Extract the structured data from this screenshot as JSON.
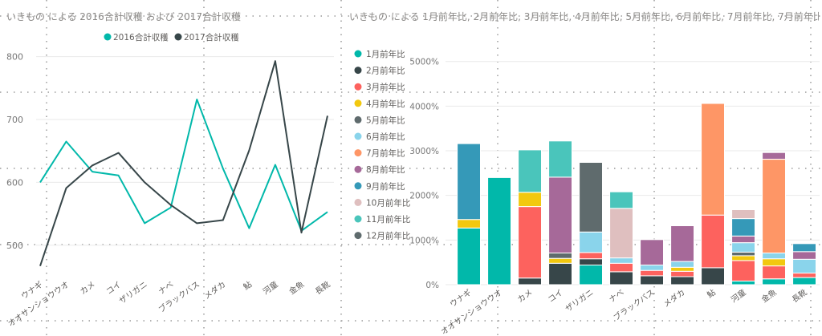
{
  "left_chart": {
    "title": "いきもの による 2016合計収穫 および 2017合計収穫",
    "chart_data": {
      "type": "line",
      "categories": [
        "ウナギ",
        "オオサンショウウオ",
        "カメ",
        "コイ",
        "ザリガニ",
        "ナベ",
        "ブラックバス",
        "メダカ",
        "鮎",
        "河童",
        "金魚",
        "長靴"
      ],
      "series": [
        {
          "name": "2016合計収穫",
          "color": "#01b8aa",
          "values": [
            600,
            665,
            617,
            611,
            535,
            560,
            732,
            622,
            527,
            628,
            523,
            553
          ]
        },
        {
          "name": "2017合計収穫",
          "color": "#374649",
          "values": [
            467,
            591,
            627,
            647,
            600,
            564,
            535,
            540,
            651,
            793,
            520,
            706
          ]
        }
      ],
      "ylim": [
        450,
        820
      ],
      "yticks": [
        500,
        600,
        700,
        800
      ],
      "grid": true,
      "legend": "top"
    }
  },
  "right_chart": {
    "title": "いきもの による 1月前年比, 2月前年比, 3月前年比, 4月前年比, 5月前年比, 6月前年比, 7月前年比, 7月前年比, 8月前...",
    "chart_data": {
      "type": "bar",
      "stacked": true,
      "categories": [
        "ウナギ",
        "オオサンショウウオ",
        "カメ",
        "コイ",
        "ザリガニ",
        "ナベ",
        "ブラックバス",
        "メダカ",
        "鮎",
        "河童",
        "金魚",
        "長靴"
      ],
      "series": [
        {
          "name": "1月前年比",
          "color": "#01b8aa",
          "values": [
            1270,
            2400,
            0,
            0,
            440,
            0,
            0,
            0,
            0,
            80,
            130,
            160
          ]
        },
        {
          "name": "2月前年比",
          "color": "#374649",
          "values": [
            0,
            0,
            150,
            480,
            140,
            290,
            200,
            180,
            380,
            0,
            0,
            0
          ]
        },
        {
          "name": "3月前年比",
          "color": "#fd625e",
          "values": [
            0,
            0,
            1600,
            0,
            140,
            190,
            120,
            120,
            1180,
            460,
            290,
            100
          ]
        },
        {
          "name": "4月前年比",
          "color": "#f2c80f",
          "values": [
            190,
            0,
            320,
            110,
            0,
            0,
            0,
            90,
            0,
            110,
            160,
            0
          ]
        },
        {
          "name": "5月前年比",
          "color": "#5f6b6d",
          "values": [
            0,
            0,
            0,
            120,
            0,
            0,
            0,
            0,
            0,
            80,
            0,
            0
          ]
        },
        {
          "name": "6月前年比",
          "color": "#8ad4eb",
          "values": [
            0,
            0,
            0,
            0,
            460,
            120,
            120,
            130,
            0,
            210,
            130,
            310
          ]
        },
        {
          "name": "7月前年比",
          "color": "#fe9666",
          "values": [
            0,
            0,
            0,
            0,
            0,
            0,
            0,
            0,
            2500,
            0,
            2100,
            0
          ]
        },
        {
          "name": "8月前年比",
          "color": "#a66999",
          "values": [
            0,
            0,
            0,
            1700,
            0,
            0,
            570,
            800,
            0,
            150,
            150,
            170
          ]
        },
        {
          "name": "9月前年比",
          "color": "#3599b8",
          "values": [
            1700,
            0,
            0,
            0,
            0,
            0,
            0,
            0,
            0,
            390,
            0,
            180
          ]
        },
        {
          "name": "10月前年比",
          "color": "#dfbfbf",
          "values": [
            0,
            0,
            0,
            0,
            0,
            1110,
            0,
            0,
            0,
            200,
            0,
            0
          ]
        },
        {
          "name": "11月前年比",
          "color": "#4ac5bb",
          "values": [
            0,
            0,
            950,
            810,
            0,
            370,
            0,
            0,
            0,
            0,
            0,
            0
          ]
        },
        {
          "name": "12月前年比",
          "color": "#5f6b6d",
          "values": [
            0,
            0,
            0,
            0,
            1560,
            0,
            0,
            0,
            0,
            0,
            0,
            0
          ]
        }
      ],
      "ylim": [
        0,
        5300
      ],
      "yticks": [
        0,
        1000,
        2000,
        3000,
        4000,
        5000
      ],
      "ytick_labels": [
        "0%",
        "1000%",
        "2000%",
        "3000%",
        "4000%",
        "5000%"
      ],
      "grid": true,
      "legend": "left"
    }
  }
}
